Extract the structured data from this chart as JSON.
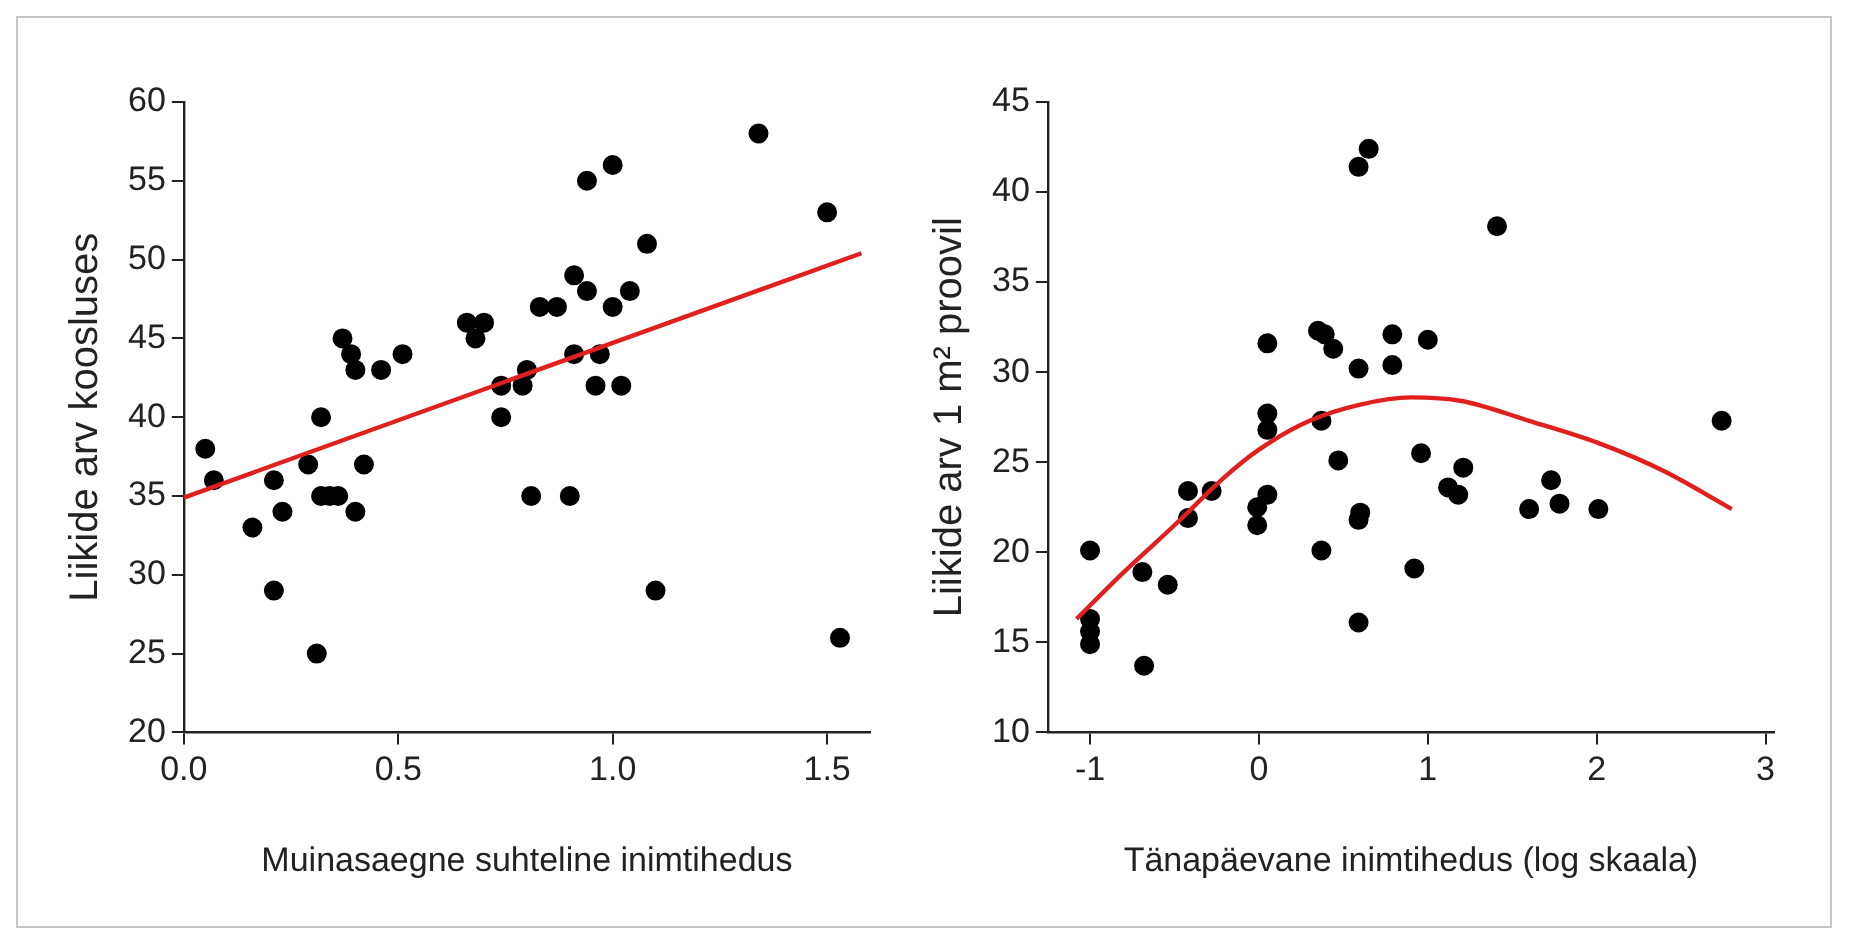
{
  "chart_data": [
    {
      "type": "scatter",
      "xlabel": "Muinasaegne suhteline inimtihedus",
      "ylabel": "Liikide arv koosluses",
      "xlim": [
        0,
        1.6
      ],
      "ylim": [
        20,
        60
      ],
      "xticks": [
        {
          "value": 0,
          "label": "0.0"
        },
        {
          "value": 0.5,
          "label": "0.5"
        },
        {
          "value": 1,
          "label": "1.0"
        },
        {
          "value": 1.5,
          "label": "1.5"
        }
      ],
      "yticks": [
        20,
        25,
        30,
        35,
        40,
        45,
        50,
        55,
        60
      ],
      "grid": false,
      "legend": false,
      "marker": "circle",
      "series": [
        {
          "color": "#000000",
          "x": [
            0.05,
            0.07,
            0.16,
            0.21,
            0.21,
            0.23,
            0.29,
            0.31,
            0.32,
            0.32,
            0.34,
            0.36,
            0.37,
            0.39,
            0.4,
            0.4,
            0.42,
            0.46,
            0.51,
            0.66,
            0.68,
            0.7,
            0.74,
            0.74,
            0.79,
            0.8,
            0.81,
            0.83,
            0.87,
            0.9,
            0.91,
            0.91,
            0.94,
            0.94,
            0.96,
            0.97,
            1.0,
            1.0,
            1.02,
            1.04,
            1.08,
            1.1,
            1.34,
            1.5,
            1.53
          ],
          "values": [
            38,
            36,
            33,
            36,
            29,
            34,
            37,
            25,
            40,
            35,
            35,
            35,
            45,
            44,
            34,
            43,
            37,
            43,
            44,
            46,
            45,
            46,
            40,
            42,
            42,
            43,
            35,
            47,
            47,
            35,
            49,
            44,
            48,
            55,
            42,
            44,
            56,
            47,
            42,
            48,
            51,
            29,
            58,
            53,
            26
          ]
        },
        {
          "type": "line",
          "color": "#e0201e",
          "marker": "none",
          "line_style": "solid",
          "x": [
            0,
            1.58
          ],
          "values": [
            34.9,
            50.4
          ]
        }
      ]
    },
    {
      "type": "scatter",
      "xlabel": "Tänapäevane inimtihedus (log skaala)",
      "ylabel": "Liikide arv 1 m² proovil",
      "xlim": [
        -1.25,
        3.05
      ],
      "ylim": [
        10,
        45
      ],
      "xticks": [
        -1,
        0,
        1,
        2,
        3
      ],
      "yticks": [
        10,
        15,
        20,
        25,
        30,
        35,
        40,
        45
      ],
      "grid": false,
      "legend": false,
      "marker": "circle",
      "series": [
        {
          "color": "#000000",
          "x": [
            -1,
            -1,
            -1,
            -1,
            -0.69,
            -0.68,
            -0.54,
            -0.42,
            -0.42,
            -0.28,
            -0.01,
            -0.01,
            0.05,
            0.05,
            0.05,
            0.05,
            0.35,
            0.39,
            0.37,
            0.37,
            0.44,
            0.47,
            0.59,
            0.65,
            0.59,
            0.6,
            0.59,
            0.59,
            0.79,
            0.79,
            0.92,
            0.96,
            1.0,
            1.12,
            1.18,
            1.21,
            1.41,
            1.6,
            1.73,
            1.78,
            2.01,
            2.74
          ],
          "values": [
            20.1,
            16.3,
            15.6,
            14.9,
            18.9,
            13.7,
            18.2,
            23.4,
            21.9,
            23.4,
            22.5,
            21.5,
            23.2,
            31.6,
            27.7,
            26.8,
            32.3,
            32.1,
            27.3,
            20.1,
            31.3,
            25.1,
            41.4,
            42.4,
            30.2,
            22.2,
            21.8,
            16.1,
            32.1,
            30.4,
            19.1,
            25.5,
            31.8,
            23.6,
            23.2,
            24.7,
            38.1,
            22.4,
            24.0,
            22.7,
            22.4,
            27.3
          ]
        },
        {
          "type": "line",
          "color": "#e0201e",
          "marker": "none",
          "line_style": "solid",
          "x": [
            -1.08,
            -0.8,
            -0.5,
            -0.2,
            0,
            0.3,
            0.6,
            0.9,
            1.2,
            1.6,
            2.0,
            2.4,
            2.8
          ],
          "values": [
            16.3,
            18.9,
            21.5,
            24.2,
            25.7,
            27.3,
            28.2,
            28.6,
            28.4,
            27.3,
            26.1,
            24.5,
            22.4
          ]
        }
      ]
    }
  ]
}
